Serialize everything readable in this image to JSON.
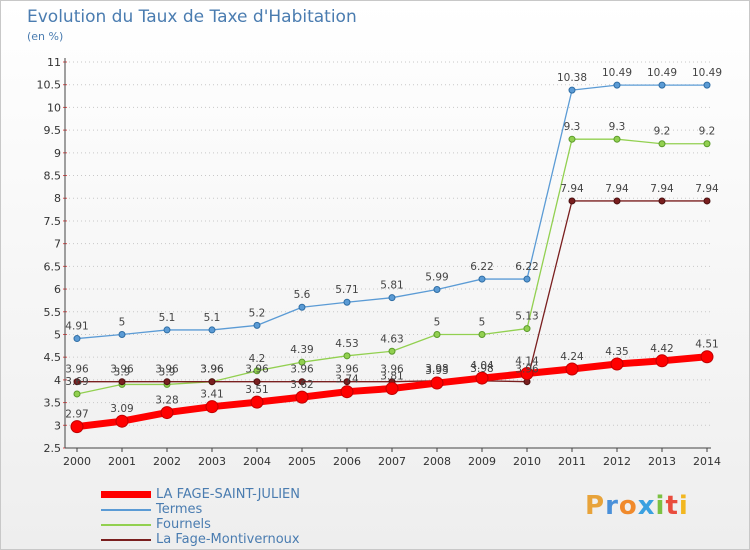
{
  "title": "Evolution du Taux de Taxe d'Habitation",
  "unit_label": "(en %)",
  "logo": {
    "text": "Proxiti"
  },
  "chart_data": {
    "type": "line",
    "title": "Evolution du Taux de Taxe d'Habitation",
    "ylabel": "(en %)",
    "x": [
      2000,
      2001,
      2002,
      2003,
      2004,
      2005,
      2006,
      2007,
      2008,
      2009,
      2010,
      2011,
      2012,
      2013,
      2014
    ],
    "ylim": [
      2.5,
      11
    ],
    "yticks": [
      2.5,
      3,
      3.5,
      4,
      4.5,
      5,
      5.5,
      6,
      6.5,
      7,
      7.5,
      8,
      8.5,
      9,
      9.5,
      10,
      10.5,
      11
    ],
    "ytick_labels": [
      "2.5",
      "3",
      "3.5",
      "4",
      "4.5",
      "5",
      "5.5",
      "6",
      "6.5",
      "7",
      "7.5",
      "8",
      "8.5",
      "9",
      "9.5",
      "10",
      "10.5",
      "11"
    ],
    "grid": "dotted horizontal",
    "legend": "bottom-left",
    "series": [
      {
        "name": "LA FAGE-SAINT-JULIEN",
        "color": "#ff0000",
        "values": [
          2.97,
          3.09,
          3.28,
          3.41,
          3.51,
          3.62,
          3.74,
          3.81,
          3.93,
          4.04,
          4.14,
          4.24,
          4.35,
          4.42,
          4.51
        ]
      },
      {
        "name": "Termes",
        "color": "#5b9bd5",
        "values": [
          4.91,
          5,
          5.1,
          5.1,
          5.2,
          5.6,
          5.71,
          5.81,
          5.99,
          6.22,
          6.22,
          10.38,
          10.49,
          10.49,
          10.49
        ]
      },
      {
        "name": "Fournels",
        "color": "#92d050",
        "values": [
          3.69,
          3.9,
          3.9,
          3.96,
          4.2,
          4.39,
          4.53,
          4.63,
          5,
          5,
          5.13,
          9.3,
          9.3,
          9.2,
          9.2
        ]
      },
      {
        "name": "La Fage-Montivernoux",
        "color": "#7a1f1f",
        "values": [
          3.96,
          3.96,
          3.96,
          3.96,
          3.96,
          3.96,
          3.96,
          3.96,
          3.98,
          3.98,
          3.96,
          7.94,
          7.94,
          7.94,
          7.94
        ]
      }
    ]
  }
}
